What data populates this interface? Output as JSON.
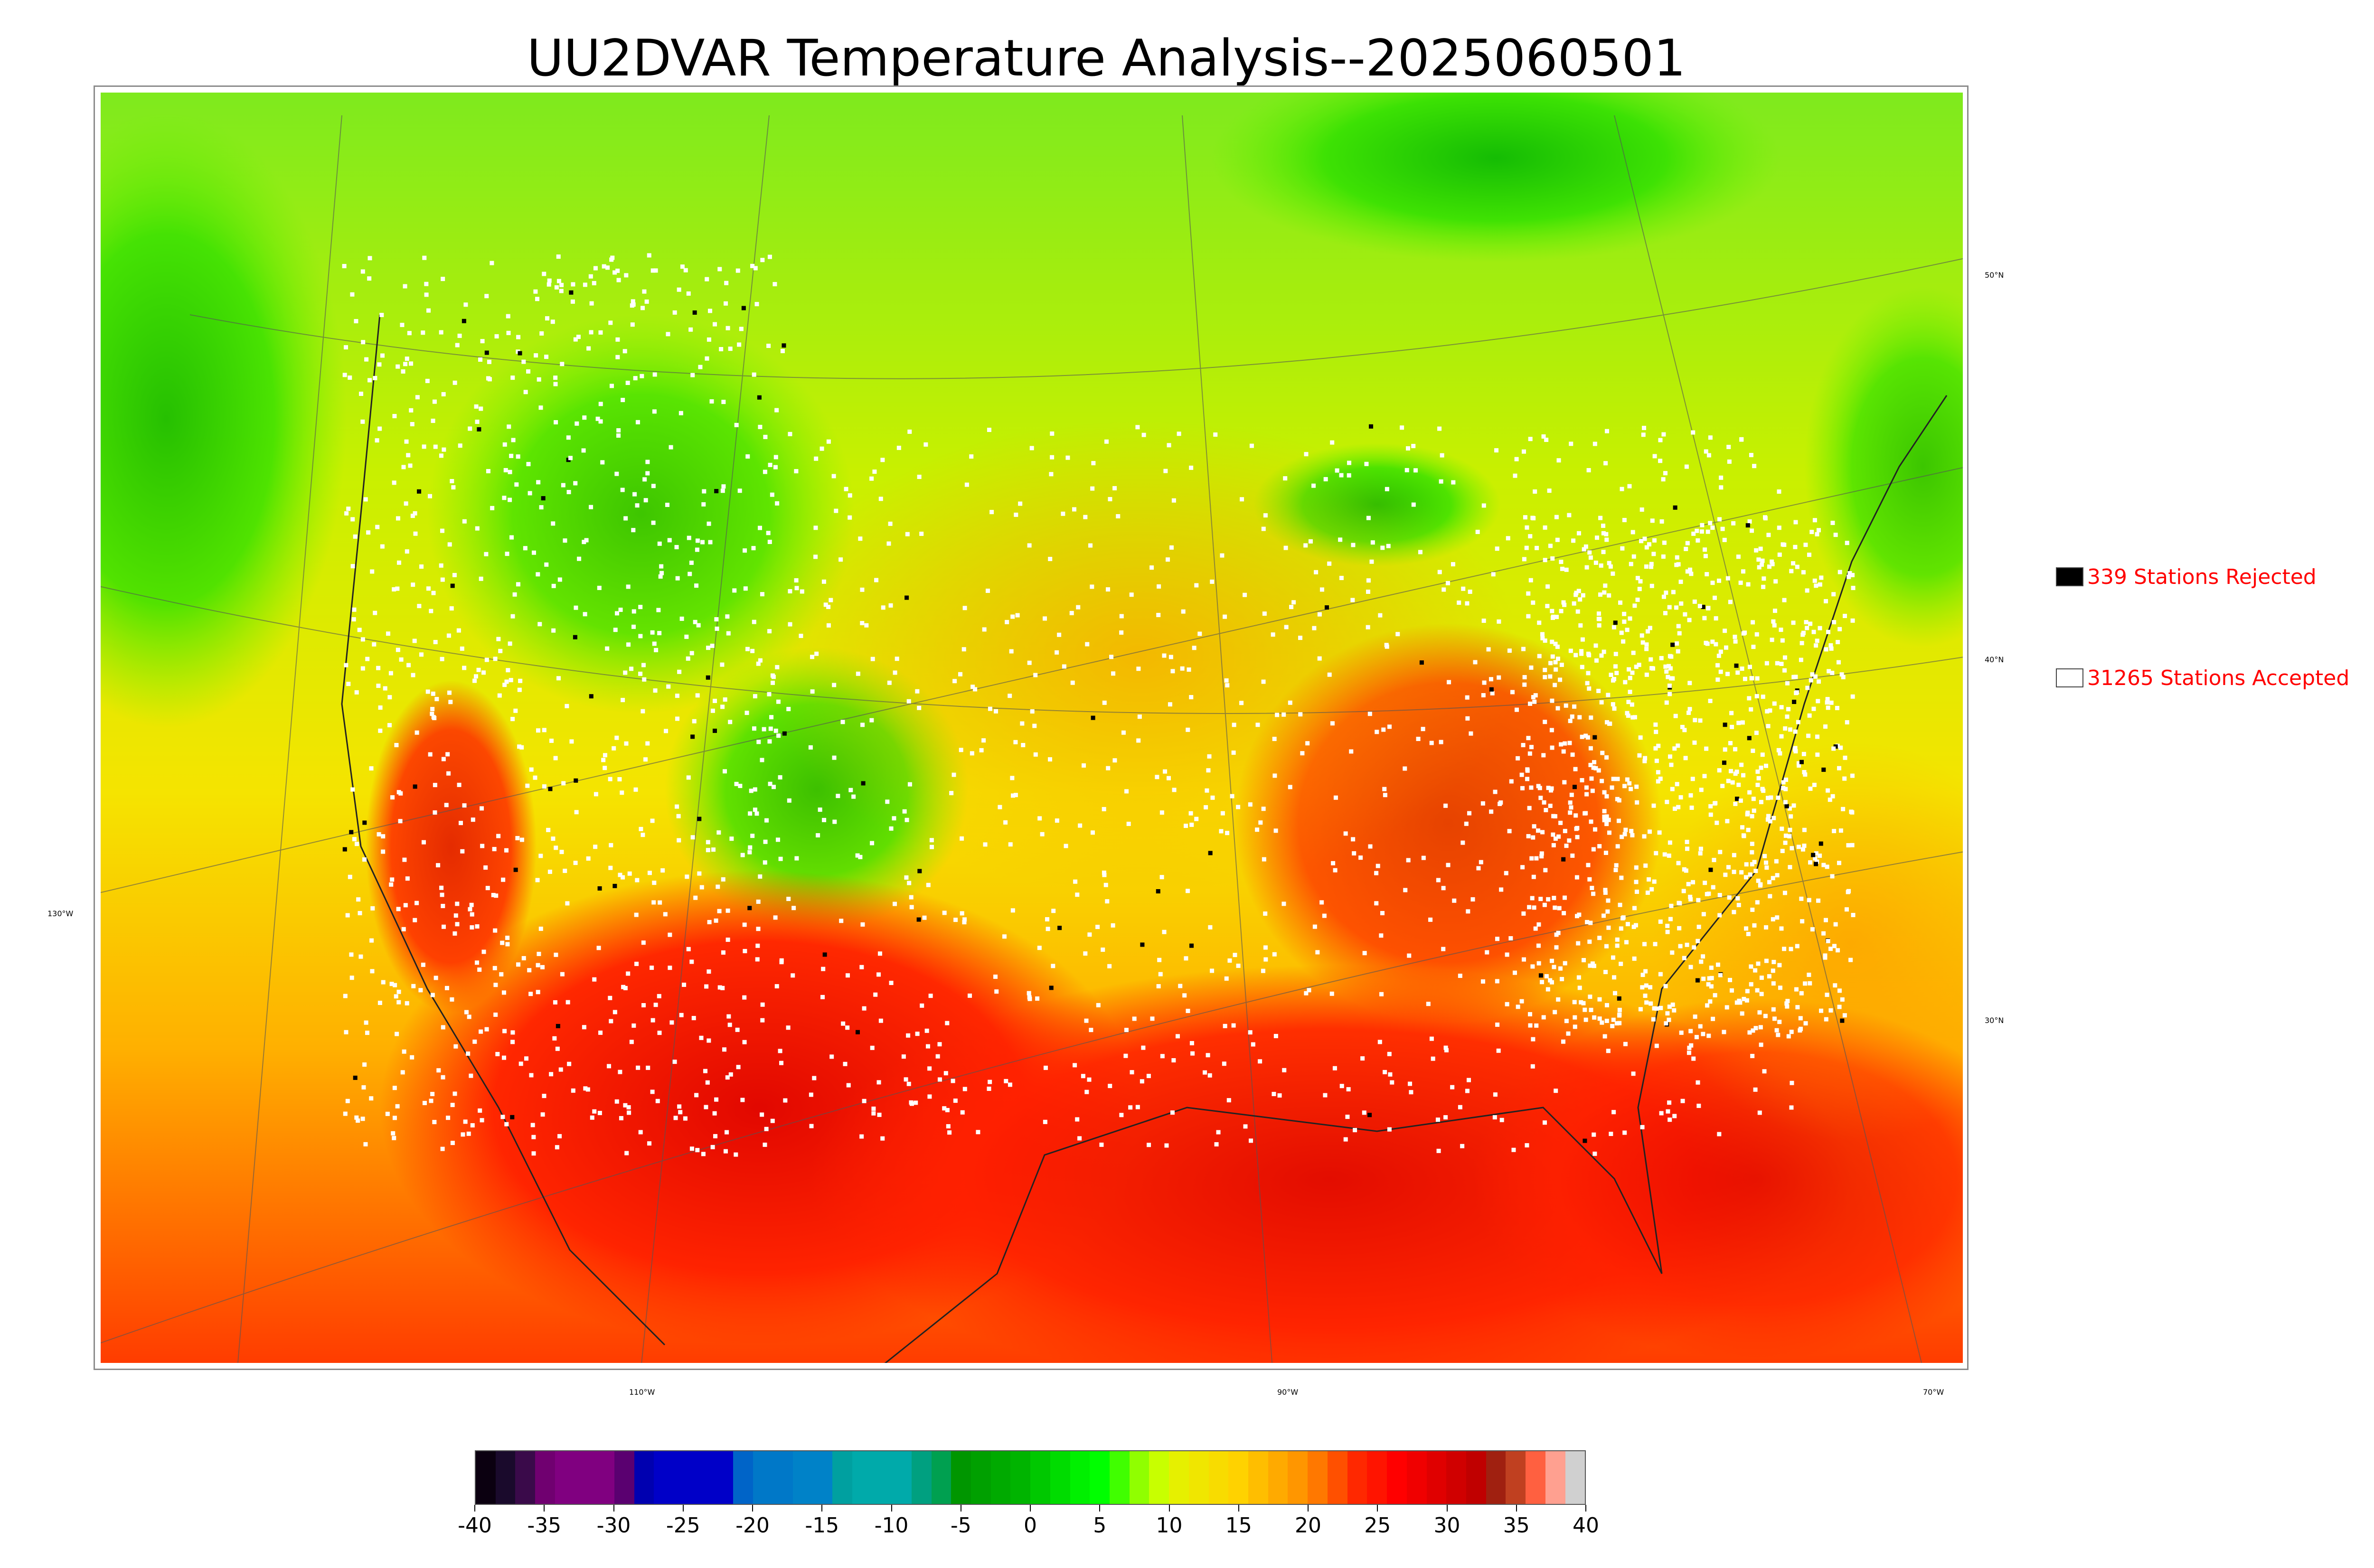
{
  "title": "UU2DVAR Temperature Analysis--2025060501",
  "map": {
    "longitude_labels": [
      "130°W",
      "110°W",
      "90°W",
      "70°W"
    ],
    "latitude_labels": [
      "50°N",
      "40°N",
      "30°N"
    ]
  },
  "legend": {
    "rejected": {
      "label": "339 Stations Rejected",
      "count": 339,
      "color": "#000000"
    },
    "accepted": {
      "label": "31265 Stations Accepted",
      "count": 31265,
      "color": "#ffffff"
    },
    "text_color": "#ff0000"
  },
  "colorbar": {
    "min": -40,
    "max": 40,
    "tick_labels": [
      "-40",
      "-35",
      "-30",
      "-25",
      "-20",
      "-15",
      "-10",
      "-5",
      "0",
      "5",
      "10",
      "15",
      "20",
      "25",
      "30",
      "35",
      "40"
    ],
    "colors": [
      "#0b0010",
      "#1a0a2c",
      "#3a0a4a",
      "#700070",
      "#800080",
      "#800080",
      "#800080",
      "#5a0070",
      "#0000b0",
      "#0000c8",
      "#0000c8",
      "#0000c8",
      "#0000c8",
      "#0064c8",
      "#0078c8",
      "#0078c8",
      "#0082c8",
      "#0082c8",
      "#00a0a0",
      "#00aaaa",
      "#00aaaa",
      "#00aaaa",
      "#00a080",
      "#00a050",
      "#009600",
      "#00a000",
      "#00aa00",
      "#00b400",
      "#00c800",
      "#00dc00",
      "#00f000",
      "#00ff00",
      "#40ff00",
      "#90ff00",
      "#c8ff00",
      "#e6f000",
      "#f0e600",
      "#f8dc00",
      "#ffd200",
      "#ffbe00",
      "#ffaa00",
      "#ff9600",
      "#ff7800",
      "#ff5000",
      "#ff2800",
      "#ff1400",
      "#ff0000",
      "#f00000",
      "#e00000",
      "#d00000",
      "#c00000",
      "#a02010",
      "#c04020",
      "#ff6040",
      "#ffa090",
      "#d0d0d0"
    ]
  }
}
